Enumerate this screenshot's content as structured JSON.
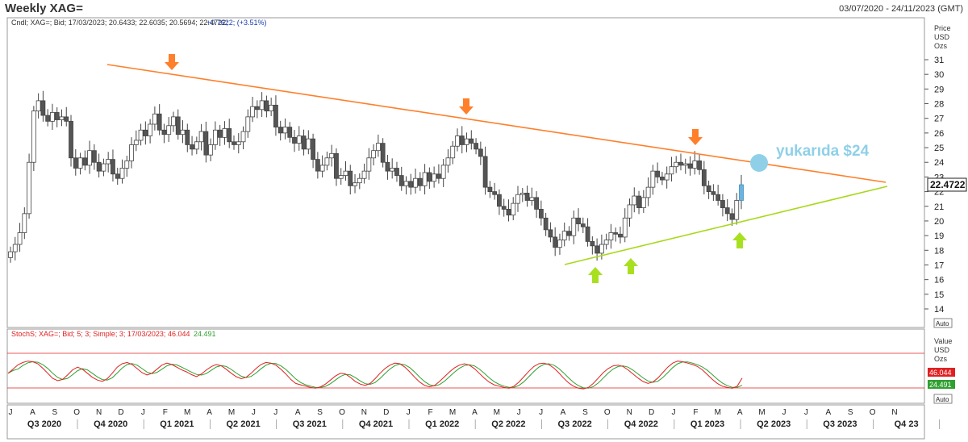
{
  "header": {
    "title": "Weekly XAG=",
    "date_range": "03/07/2020 - 24/11/2023 (GMT)"
  },
  "price_panel": {
    "info": "Cndl; XAG=; Bid; 17/03/2023; 20.6433; 22.6035; 20.5694; 22.4722;",
    "change": "+0.7622; (+3.51%)",
    "axis_title": [
      "Price",
      "USD",
      "Ozs"
    ],
    "last_price_label": "22.4722",
    "auto_label": "Auto",
    "annotation": "yukarıda $24",
    "colors": {
      "up": "#ffffff",
      "down": "#555555",
      "resistance": "#ff7f2a",
      "support": "#a8d81a",
      "last_candle": "#6cb4dc",
      "annotation": "#8fd0e8"
    }
  },
  "stoch_panel": {
    "info_prefix": "StochS; XAG=; Bid; 5; 3; Simple; 3; 17/03/2023;",
    "k_value": "46.044",
    "d_value": "24.491",
    "axis_title": [
      "Value",
      "USD",
      "Ozs"
    ],
    "auto_label": "Auto",
    "colors": {
      "k": "#e02020",
      "d": "#30a030",
      "bands": "#e02020"
    }
  },
  "time_axis": {
    "months": [
      "J",
      "A",
      "S",
      "O",
      "N",
      "D",
      "J",
      "F",
      "M",
      "A",
      "M",
      "J",
      "J",
      "A",
      "S",
      "O",
      "N",
      "D",
      "J",
      "F",
      "M",
      "A",
      "M",
      "J",
      "J",
      "A",
      "S",
      "O",
      "N",
      "D",
      "J",
      "F",
      "M",
      "A",
      "M",
      "J",
      "J",
      "A",
      "S",
      "O",
      "N"
    ],
    "quarters": [
      "Q3 2020",
      "Q4 2020",
      "Q1 2021",
      "Q2 2021",
      "Q3 2021",
      "Q4 2021",
      "Q1 2022",
      "Q2 2022",
      "Q3 2022",
      "Q4 2022",
      "Q1 2023",
      "Q2 2023",
      "Q3 2023",
      "Q4 23"
    ]
  },
  "chart_data": {
    "type": "candlestick",
    "title": "Weekly XAG=",
    "ylabel": "Price USD Ozs",
    "ylim": [
      13,
      32
    ],
    "yticks": [
      14,
      15,
      16,
      17,
      18,
      19,
      20,
      21,
      22,
      23,
      24,
      25,
      26,
      27,
      28,
      29,
      30,
      31
    ],
    "x_range": [
      "2020-07-03",
      "2023-11-24"
    ],
    "weekly_close": [
      17.9,
      18.4,
      19.2,
      20.5,
      24.0,
      27.5,
      28.2,
      27.2,
      26.8,
      27.4,
      26.9,
      27.1,
      26.8,
      24.3,
      23.6,
      24.3,
      23.8,
      24.8,
      24.0,
      23.4,
      23.9,
      24.2,
      23.2,
      22.9,
      23.6,
      24.1,
      25.2,
      25.5,
      26.2,
      25.8,
      26.6,
      27.3,
      26.2,
      25.9,
      26.5,
      27.1,
      25.9,
      26.2,
      25.2,
      24.9,
      25.4,
      26.1,
      24.5,
      25.2,
      26.2,
      25.7,
      26.3,
      25.4,
      25.2,
      25.4,
      26.1,
      27.1,
      27.8,
      27.6,
      28.2,
      27.5,
      27.9,
      26.4,
      26.0,
      26.4,
      25.7,
      25.3,
      25.8,
      24.9,
      25.6,
      24.2,
      23.4,
      23.8,
      24.3,
      24.6,
      22.9,
      23.1,
      23.4,
      22.4,
      22.6,
      22.9,
      23.4,
      24.3,
      24.8,
      25.3,
      24.0,
      23.4,
      23.6,
      23.1,
      22.4,
      22.7,
      22.3,
      22.9,
      22.4,
      23.3,
      22.7,
      23.2,
      22.9,
      23.8,
      24.3,
      25.1,
      25.8,
      25.2,
      25.6,
      25.3,
      24.9,
      24.4,
      22.3,
      22.0,
      21.8,
      21.0,
      20.8,
      20.4,
      21.2,
      21.8,
      21.9,
      21.4,
      21.6,
      20.8,
      20.2,
      19.4,
      18.9,
      18.2,
      18.7,
      19.3,
      19.0,
      20.2,
      19.8,
      19.6,
      18.6,
      18.3,
      17.8,
      18.4,
      18.7,
      19.2,
      19.1,
      18.9,
      20.2,
      21.1,
      21.7,
      20.9,
      21.6,
      22.3,
      23.4,
      23.0,
      22.8,
      23.2,
      23.7,
      24.0,
      23.8,
      23.9,
      23.6,
      24.1,
      23.5,
      22.4,
      22.0,
      21.8,
      21.4,
      20.9,
      20.5,
      20.1,
      21.4,
      22.47
    ],
    "annotations": [
      "down-arrow near 30.0 (Feb 2021)",
      "down-arrow near 27.0 (Mar 2022)",
      "down-arrow near 24.5 (Jan 2023)",
      "up-arrow near 17.6 (Sep 2022)",
      "up-arrow near 17.8 (Oct 2022)",
      "up-arrow near 19.9 (Mar 2023)"
    ],
    "trendlines": [
      {
        "name": "resistance",
        "from": [
          "2020-11",
          30.6
        ],
        "to": [
          "2023-11",
          22.7
        ]
      },
      {
        "name": "support",
        "from": [
          "2022-08",
          17.1
        ],
        "to": [
          "2023-11",
          22.4
        ]
      }
    ],
    "stochastic": {
      "k_last": 46.044,
      "d_last": 24.491,
      "bands": [
        80,
        20
      ],
      "k": [
        60,
        72,
        85,
        92,
        96,
        94,
        88,
        75,
        60,
        45,
        38,
        42,
        55,
        70,
        78,
        72,
        60,
        48,
        40,
        36,
        44,
        60,
        78,
        88,
        92,
        86,
        74,
        62,
        55,
        60,
        72,
        84,
        90,
        86,
        78,
        70,
        64,
        56,
        50,
        58,
        70,
        80,
        86,
        82,
        72,
        60,
        50,
        44,
        48,
        60,
        74,
        86,
        92,
        90,
        84,
        72,
        58,
        42,
        30,
        26,
        22,
        18,
        16,
        20,
        28,
        40,
        52,
        60,
        58,
        48,
        36,
        28,
        24,
        30,
        44,
        60,
        74,
        84,
        90,
        88,
        78,
        64,
        48,
        34,
        24,
        20,
        24,
        36,
        50,
        64,
        76,
        84,
        88,
        84,
        74,
        60,
        46,
        34,
        26,
        22,
        18,
        16,
        22,
        34,
        50,
        66,
        80,
        88,
        90,
        86,
        76,
        62,
        46,
        32,
        22,
        16,
        14,
        18,
        30,
        46,
        62,
        74,
        82,
        84,
        80,
        70,
        58,
        46,
        36,
        30,
        34,
        46,
        62,
        78,
        90,
        96,
        94,
        90,
        86,
        80,
        70,
        56,
        42,
        30,
        22,
        18,
        16,
        22,
        46
      ]
    }
  }
}
